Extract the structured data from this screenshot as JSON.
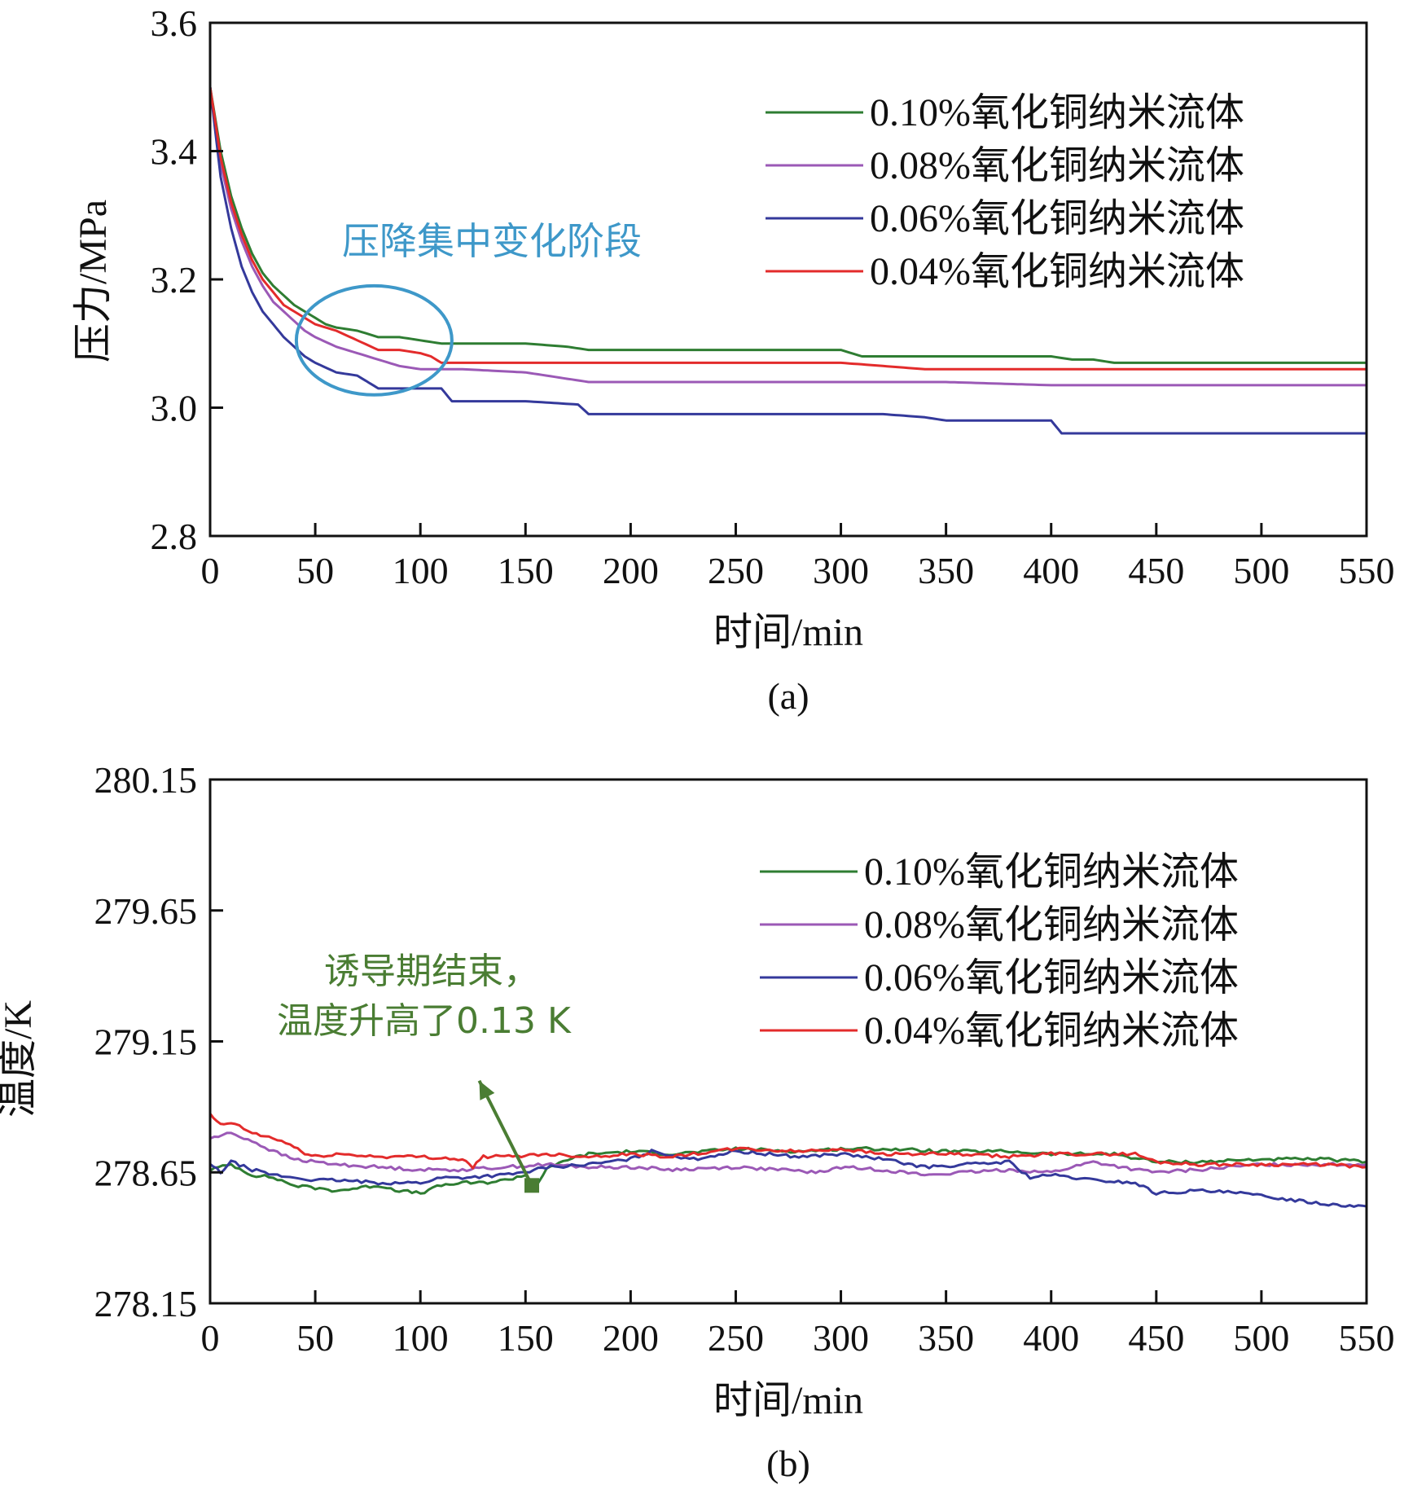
{
  "charts": [
    {
      "id": "a",
      "chart_data": {
        "type": "line",
        "panel_label": "(a)",
        "xlabel": "时间/min",
        "ylabel": "压力/MPa",
        "xlim": [
          0,
          550
        ],
        "ylim": [
          2.8,
          3.6
        ],
        "xticks": [
          0,
          50,
          100,
          150,
          200,
          250,
          300,
          350,
          400,
          450,
          500,
          550
        ],
        "yticks": [
          2.8,
          3.0,
          3.2,
          3.4,
          3.6
        ],
        "y_tick_labels": [
          "2.8",
          "3.0",
          "3.2",
          "3.4",
          "3.6"
        ],
        "legend_position": "top-right",
        "annotation": {
          "text": "压降集中变化阶段",
          "ellipse_center": [
            78,
            3.105
          ],
          "ellipse_radius_x": 37,
          "ellipse_radius_y": 0.085
        },
        "series": [
          {
            "name": "0.10%氧化铜纳米流体",
            "color": "#2e7d32",
            "x": [
              0,
              5,
              10,
              15,
              20,
              25,
              30,
              35,
              40,
              45,
              50,
              55,
              60,
              70,
              80,
              90,
              100,
              110,
              120,
              150,
              170,
              180,
              200,
              250,
              300,
              310,
              350,
              400,
              410,
              420,
              430,
              450,
              500,
              550
            ],
            "y": [
              3.5,
              3.4,
              3.33,
              3.28,
              3.24,
              3.21,
              3.19,
              3.175,
              3.16,
              3.15,
              3.14,
              3.13,
              3.125,
              3.12,
              3.11,
              3.11,
              3.105,
              3.1,
              3.1,
              3.1,
              3.095,
              3.09,
              3.09,
              3.09,
              3.09,
              3.08,
              3.08,
              3.08,
              3.075,
              3.075,
              3.07,
              3.07,
              3.07,
              3.07
            ]
          },
          {
            "name": "0.08%氧化铜纳米流体",
            "color": "#9b59b6",
            "x": [
              0,
              5,
              10,
              15,
              20,
              25,
              30,
              35,
              40,
              45,
              50,
              60,
              70,
              80,
              90,
              100,
              110,
              120,
              150,
              160,
              170,
              180,
              200,
              250,
              300,
              350,
              400,
              450,
              500,
              550
            ],
            "y": [
              3.5,
              3.38,
              3.31,
              3.26,
              3.22,
              3.19,
              3.165,
              3.15,
              3.135,
              3.12,
              3.11,
              3.095,
              3.085,
              3.075,
              3.065,
              3.06,
              3.06,
              3.06,
              3.055,
              3.05,
              3.045,
              3.04,
              3.04,
              3.04,
              3.04,
              3.04,
              3.035,
              3.035,
              3.035,
              3.035
            ]
          },
          {
            "name": "0.06%氧化铜纳米流体",
            "color": "#34399b",
            "x": [
              0,
              5,
              10,
              15,
              20,
              25,
              30,
              35,
              40,
              45,
              50,
              60,
              70,
              80,
              90,
              100,
              110,
              115,
              120,
              150,
              175,
              180,
              200,
              250,
              300,
              320,
              340,
              350,
              400,
              405,
              410,
              450,
              500,
              550
            ],
            "y": [
              3.5,
              3.36,
              3.28,
              3.22,
              3.18,
              3.15,
              3.13,
              3.11,
              3.095,
              3.08,
              3.07,
              3.055,
              3.05,
              3.03,
              3.03,
              3.03,
              3.03,
              3.01,
              3.01,
              3.01,
              3.005,
              2.99,
              2.99,
              2.99,
              2.99,
              2.99,
              2.985,
              2.98,
              2.98,
              2.96,
              2.96,
              2.96,
              2.96,
              2.96
            ]
          },
          {
            "name": "0.04%氧化铜纳米流体",
            "color": "#e32b2b",
            "x": [
              0,
              5,
              10,
              15,
              20,
              25,
              30,
              35,
              40,
              45,
              50,
              60,
              70,
              80,
              90,
              100,
              105,
              110,
              120,
              150,
              200,
              250,
              300,
              320,
              340,
              350,
              400,
              450,
              500,
              550
            ],
            "y": [
              3.5,
              3.39,
              3.32,
              3.27,
              3.23,
              3.2,
              3.18,
              3.16,
              3.15,
              3.14,
              3.13,
              3.12,
              3.105,
              3.09,
              3.09,
              3.085,
              3.08,
              3.07,
              3.07,
              3.07,
              3.07,
              3.07,
              3.07,
              3.065,
              3.06,
              3.06,
              3.06,
              3.06,
              3.06,
              3.06
            ]
          }
        ]
      }
    },
    {
      "id": "b",
      "chart_data": {
        "type": "line",
        "panel_label": "(b)",
        "xlabel": "时间/min",
        "ylabel": "温度/K",
        "xlim": [
          0,
          550
        ],
        "ylim": [
          278.15,
          280.15
        ],
        "xticks": [
          0,
          50,
          100,
          150,
          200,
          250,
          300,
          350,
          400,
          450,
          500,
          550
        ],
        "yticks": [
          278.15,
          278.65,
          279.15,
          279.65,
          280.15
        ],
        "y_tick_labels": [
          "278.15",
          "278.65",
          "279.15",
          "279.65",
          "280.15"
        ],
        "legend_position": "top-right",
        "annotation": {
          "line1": "诱导期结束，",
          "line2": "温度升高了0.13 K",
          "arrow_from": [
            153,
            278.6
          ],
          "arrow_to": [
            128,
            279.0
          ]
        },
        "series": [
          {
            "name": "0.10%氧化铜纳米流体",
            "color": "#2e7d32",
            "x": [
              0,
              10,
              20,
              30,
              40,
              50,
              60,
              70,
              80,
              90,
              100,
              110,
              120,
              130,
              140,
              150,
              155,
              160,
              170,
              180,
              200,
              220,
              250,
              280,
              300,
              320,
              350,
              380,
              400,
              430,
              450,
              470,
              500,
              530,
              550
            ],
            "y": [
              278.66,
              278.68,
              278.64,
              278.63,
              278.6,
              278.59,
              278.58,
              278.59,
              278.6,
              278.58,
              278.57,
              278.6,
              278.61,
              278.61,
              278.62,
              278.64,
              278.6,
              278.66,
              278.7,
              278.72,
              278.73,
              278.72,
              278.74,
              278.73,
              278.74,
              278.74,
              278.73,
              278.73,
              278.72,
              278.72,
              278.69,
              278.69,
              278.7,
              278.7,
              278.69
            ]
          },
          {
            "name": "0.08%氧化铜纳米流体",
            "color": "#9b59b6",
            "x": [
              0,
              10,
              20,
              30,
              40,
              50,
              60,
              80,
              100,
              120,
              140,
              160,
              180,
              200,
              220,
              250,
              270,
              290,
              300,
              320,
              340,
              360,
              380,
              400,
              410,
              420,
              440,
              450,
              470,
              500,
              530,
              550
            ],
            "y": [
              278.78,
              278.8,
              278.77,
              278.73,
              278.7,
              278.69,
              278.68,
              278.67,
              278.66,
              278.66,
              278.67,
              278.68,
              278.67,
              278.67,
              278.66,
              278.67,
              278.66,
              278.65,
              278.67,
              278.66,
              278.64,
              278.65,
              278.66,
              278.65,
              278.67,
              278.69,
              278.66,
              278.65,
              278.66,
              278.68,
              278.68,
              278.68
            ]
          },
          {
            "name": "0.06%氧化铜纳米流体",
            "color": "#34399b",
            "x": [
              0,
              5,
              10,
              20,
              30,
              40,
              50,
              60,
              80,
              100,
              110,
              120,
              140,
              150,
              160,
              180,
              200,
              210,
              230,
              250,
              280,
              300,
              320,
              340,
              360,
              380,
              390,
              400,
              420,
              440,
              450,
              470,
              490,
              510,
              530,
              550
            ],
            "y": [
              278.68,
              278.65,
              278.69,
              278.66,
              278.64,
              278.63,
              278.62,
              278.62,
              278.61,
              278.61,
              278.63,
              278.63,
              278.64,
              278.65,
              278.67,
              278.68,
              278.7,
              278.73,
              278.7,
              278.73,
              278.71,
              278.72,
              278.7,
              278.67,
              278.68,
              278.69,
              278.63,
              278.64,
              278.62,
              278.61,
              278.57,
              278.58,
              278.57,
              278.55,
              278.53,
              278.52
            ]
          },
          {
            "name": "0.04%氧化铜纳米流体",
            "color": "#e32b2b",
            "x": [
              0,
              5,
              10,
              20,
              30,
              40,
              45,
              50,
              60,
              80,
              100,
              120,
              125,
              130,
              140,
              160,
              180,
              200,
              220,
              250,
              280,
              300,
              320,
              350,
              380,
              400,
              420,
              440,
              450,
              470,
              500,
              530,
              550
            ],
            "y": [
              278.87,
              278.83,
              278.84,
              278.8,
              278.78,
              278.75,
              278.72,
              278.71,
              278.72,
              278.71,
              278.71,
              278.7,
              278.67,
              278.71,
              278.71,
              278.72,
              278.71,
              278.72,
              278.71,
              278.74,
              278.73,
              278.74,
              278.72,
              278.72,
              278.71,
              278.72,
              278.72,
              278.72,
              278.69,
              278.68,
              278.68,
              278.68,
              278.67
            ]
          }
        ]
      }
    }
  ]
}
